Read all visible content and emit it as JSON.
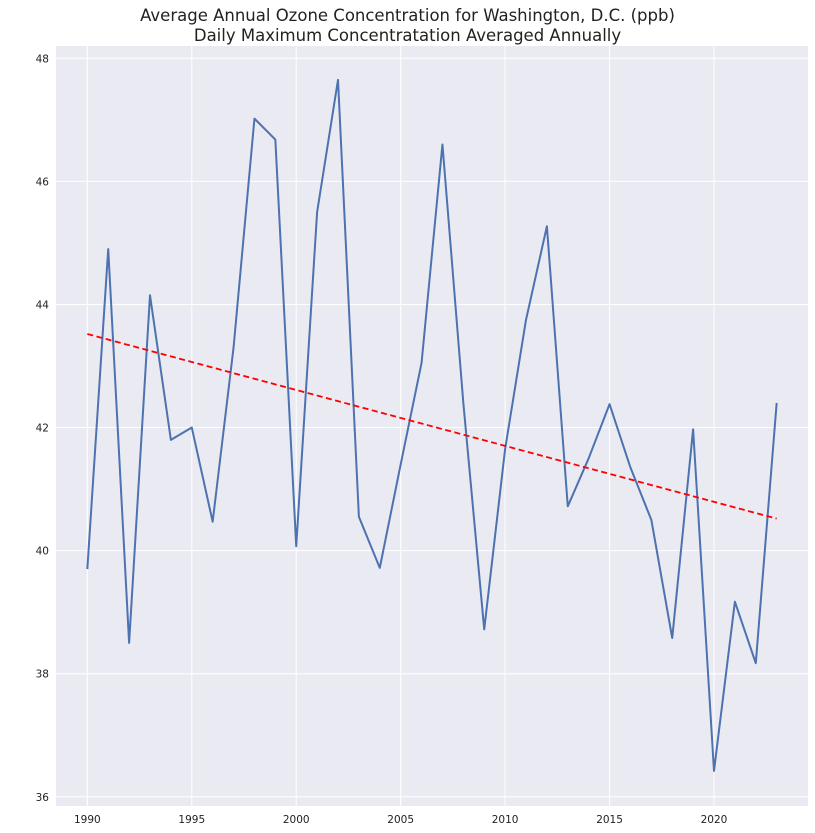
{
  "chart_data": {
    "type": "line",
    "title": "Average Annual Ozone Concentration for Washington, D.C. (ppb)",
    "subtitle": "Daily Maximum Concentratation Averaged Annually",
    "xlabel": "",
    "ylabel": "",
    "xlim": [
      1988.5,
      2024.5
    ],
    "ylim": [
      35.85,
      48.2
    ],
    "x_ticks": [
      1990,
      1995,
      2000,
      2005,
      2010,
      2015,
      2020
    ],
    "y_ticks": [
      36,
      38,
      40,
      42,
      44,
      46,
      48
    ],
    "grid": true,
    "x": [
      1990,
      1991,
      1992,
      1993,
      1994,
      1995,
      1996,
      1997,
      1998,
      1999,
      2000,
      2001,
      2002,
      2003,
      2004,
      2005,
      2006,
      2007,
      2008,
      2009,
      2010,
      2011,
      2012,
      2013,
      2014,
      2015,
      2016,
      2017,
      2018,
      2019,
      2020,
      2021,
      2022,
      2023
    ],
    "series": [
      {
        "color": "#4c72b0",
        "style": "solid",
        "values": [
          39.7,
          44.9,
          38.5,
          44.15,
          41.8,
          42.0,
          40.47,
          43.3,
          47.02,
          46.68,
          40.07,
          45.5,
          47.65,
          40.55,
          39.72,
          41.4,
          43.05,
          46.6,
          42.4,
          38.72,
          41.65,
          43.75,
          45.27,
          40.72,
          41.5,
          42.38,
          41.35,
          40.5,
          38.58,
          41.97,
          36.42,
          39.17,
          38.17,
          42.4
        ]
      },
      {
        "color": "#ff0000",
        "style": "dashed",
        "x": [
          1990,
          2023
        ],
        "values": [
          43.52,
          40.52
        ]
      }
    ],
    "colors": {
      "background": "#eaeaf2",
      "grid": "#ffffff"
    }
  }
}
